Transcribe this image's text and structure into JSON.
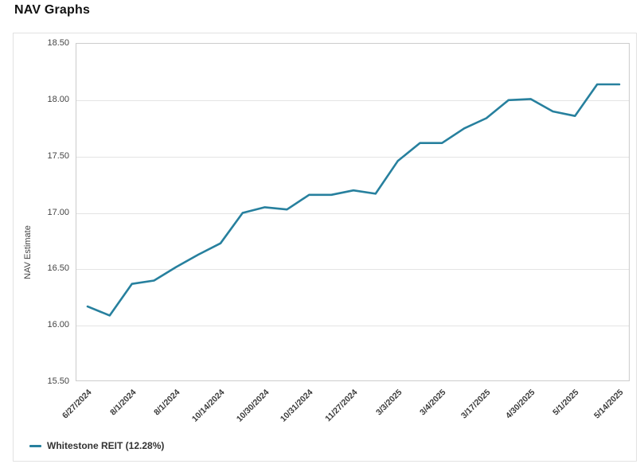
{
  "page": {
    "heading": "NAV Graphs"
  },
  "chart_data": {
    "type": "line",
    "title": "NAV Graphs",
    "xlabel": "",
    "ylabel": "NAV Estimate",
    "ylim": [
      15.5,
      18.5
    ],
    "grid": true,
    "legend_position": "bottom-left",
    "x_labels_rotation": -45,
    "y_tick_labels": [
      "18.50",
      "18.00",
      "17.50",
      "17.00",
      "16.50",
      "16.00",
      "15.50"
    ],
    "x_tick_labels": [
      "6/27/2024",
      "8/1/2024",
      "8/1/2024",
      "10/14/2024",
      "10/30/2024",
      "10/31/2024",
      "11/27/2024",
      "3/3/2025",
      "3/4/2025",
      "3/17/2025",
      "4/30/2025",
      "5/1/2025",
      "5/14/2025"
    ],
    "x_tick_point_step": 2,
    "series": [
      {
        "name": "Whitestone REIT (12.28%)",
        "color": "#27809E",
        "values": [
          16.17,
          16.09,
          16.37,
          16.4,
          16.52,
          16.63,
          16.73,
          17.0,
          17.05,
          17.03,
          17.16,
          17.16,
          17.2,
          17.17,
          17.46,
          17.62,
          17.62,
          17.75,
          17.84,
          18.0,
          18.01,
          17.9,
          17.86,
          18.14,
          18.14
        ]
      }
    ]
  }
}
